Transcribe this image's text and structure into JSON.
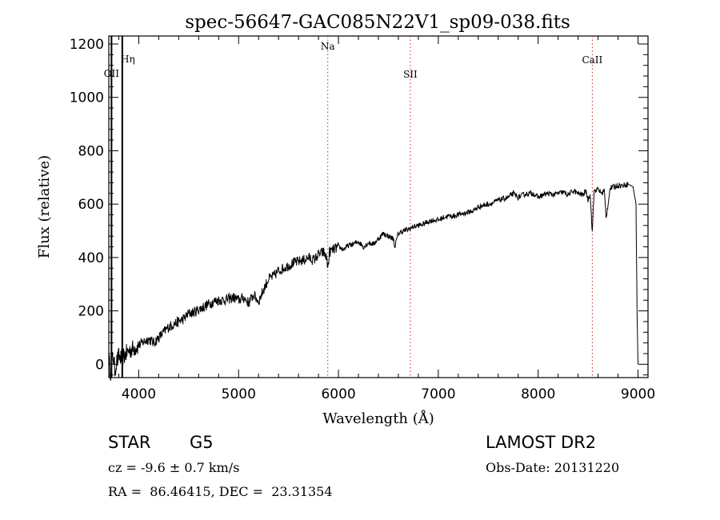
{
  "chart_data": {
    "type": "line",
    "title": "spec-56647-GAC085N22V1_sp09-038.fits",
    "xlabel": "Wavelength (Å)",
    "ylabel": "Flux (relative)",
    "xlim": [
      3700,
      9100
    ],
    "ylim": [
      -50,
      1230
    ],
    "x_ticks": [
      4000,
      5000,
      6000,
      7000,
      8000,
      9000
    ],
    "y_ticks": [
      0,
      200,
      400,
      600,
      800,
      1000,
      1200
    ],
    "line_color": "#000000",
    "marker_color": "#cc2222",
    "lines": [
      {
        "name": "OII",
        "wavelength": 3727
      },
      {
        "name": "Hη",
        "wavelength": 3835
      },
      {
        "name": "Na",
        "wavelength": 5893
      },
      {
        "name": "SII",
        "wavelength": 6720
      },
      {
        "name": "CaII",
        "wavelength": 8542
      }
    ],
    "series": [
      {
        "x": [
          3700,
          3720,
          3740,
          3760,
          3780,
          3800,
          3825,
          3850,
          3900,
          3950,
          4000,
          4050,
          4100,
          4150,
          4200,
          4250,
          4300,
          4350,
          4400,
          4450,
          4500,
          4550,
          4600,
          4650,
          4700,
          4750,
          4800,
          4850,
          4900,
          4950,
          5000,
          5050,
          5100,
          5150,
          5200,
          5250,
          5300,
          5350,
          5400,
          5450,
          5500,
          5550,
          5600,
          5650,
          5700,
          5750,
          5800,
          5850,
          5880,
          5893,
          5910,
          5950,
          6000,
          6050,
          6100,
          6150,
          6200,
          6250,
          6300,
          6350,
          6400,
          6450,
          6500,
          6550,
          6563,
          6600,
          6650,
          6700,
          6750,
          6800,
          6850,
          6900,
          6950,
          7000,
          7050,
          7100,
          7150,
          7200,
          7250,
          7300,
          7350,
          7400,
          7450,
          7500,
          7550,
          7600,
          7650,
          7700,
          7750,
          7800,
          7850,
          7900,
          7950,
          8000,
          8050,
          8100,
          8150,
          8200,
          8250,
          8300,
          8350,
          8400,
          8450,
          8480,
          8498,
          8520,
          8542,
          8560,
          8600,
          8640,
          8662,
          8680,
          8720,
          8760,
          8800,
          8850,
          8900,
          8950,
          8980,
          8990,
          9000
        ],
        "y": [
          20,
          -30,
          40,
          -20,
          10,
          30,
          20,
          30,
          50,
          60,
          70,
          85,
          95,
          80,
          100,
          120,
          140,
          150,
          160,
          170,
          190,
          195,
          205,
          215,
          225,
          235,
          240,
          240,
          245,
          250,
          240,
          250,
          230,
          260,
          235,
          280,
          320,
          330,
          350,
          360,
          370,
          380,
          385,
          390,
          400,
          390,
          410,
          420,
          400,
          360,
          420,
          430,
          440,
          430,
          445,
          450,
          460,
          440,
          455,
          450,
          470,
          490,
          480,
          470,
          440,
          490,
          500,
          505,
          515,
          520,
          525,
          535,
          540,
          540,
          550,
          555,
          555,
          560,
          565,
          570,
          575,
          590,
          595,
          600,
          605,
          615,
          620,
          625,
          640,
          625,
          635,
          640,
          640,
          625,
          635,
          640,
          635,
          640,
          645,
          635,
          650,
          640,
          635,
          650,
          615,
          640,
          495,
          650,
          655,
          640,
          655,
          545,
          660,
          665,
          670,
          670,
          675,
          665,
          600,
          200,
          0
        ]
      }
    ]
  },
  "info": {
    "obj_class": "STAR",
    "subclass": "G5",
    "redshift": "cz = -9.6 ± 0.7 km/s",
    "coords": "RA =  86.46415, DEC =  23.31354",
    "survey": "LAMOST DR2",
    "obs_date": "Obs-Date: 20131220"
  }
}
